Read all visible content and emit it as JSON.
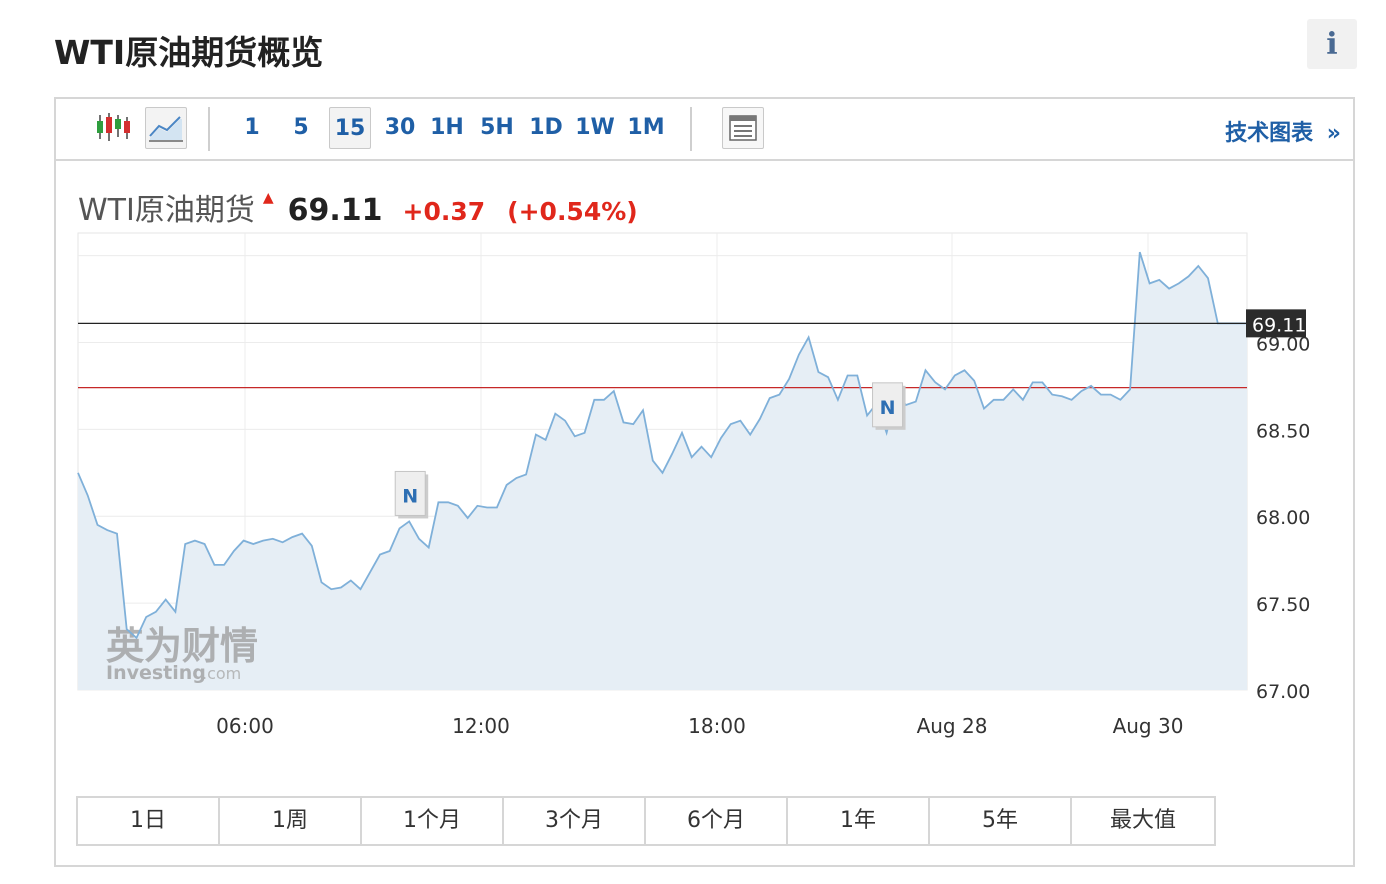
{
  "page": {
    "title": "WTI原油期货概览",
    "info_label": "i"
  },
  "toolbar": {
    "chart_types": [
      {
        "name": "candlestick-icon",
        "selected": false
      },
      {
        "name": "line-chart-icon",
        "selected": true
      }
    ],
    "intervals": [
      "1",
      "5",
      "15",
      "30",
      "1H",
      "5H",
      "1D",
      "1W",
      "1M"
    ],
    "selected_interval": "15",
    "settings_icon": "table-icon",
    "tech_chart_label": "技术图表",
    "tech_chart_arrow": "»"
  },
  "quote": {
    "name": "WTI原油期货",
    "direction": "up",
    "price": "69.11",
    "change": "+0.37",
    "change_pct": "(+0.54%)"
  },
  "chart_data": {
    "type": "area",
    "title": "",
    "xlabel": "",
    "ylabel": "",
    "x_tick_labels": [
      "06:00",
      "12:00",
      "18:00",
      "Aug 28",
      "Aug 30"
    ],
    "y_tick_labels": [
      "69.00",
      "68.50",
      "68.00",
      "67.50",
      "67.00"
    ],
    "ylim": [
      67.0,
      69.63
    ],
    "grid": true,
    "last_price_label": "69.11",
    "last_price": 69.11,
    "reference_line_value": 68.74,
    "news_marker_label": "N",
    "news_markers_at_index": [
      34,
      83
    ],
    "series_values": [
      68.25,
      68.12,
      67.95,
      67.92,
      67.9,
      67.35,
      67.3,
      67.42,
      67.45,
      67.52,
      67.45,
      67.84,
      67.86,
      67.84,
      67.72,
      67.72,
      67.8,
      67.86,
      67.84,
      67.86,
      67.87,
      67.85,
      67.88,
      67.9,
      67.83,
      67.62,
      67.58,
      67.59,
      67.63,
      67.58,
      67.68,
      67.78,
      67.8,
      67.93,
      67.97,
      67.87,
      67.82,
      68.08,
      68.08,
      68.06,
      67.99,
      68.06,
      68.05,
      68.05,
      68.18,
      68.22,
      68.24,
      68.47,
      68.44,
      68.59,
      68.55,
      68.46,
      68.48,
      68.67,
      68.67,
      68.72,
      68.54,
      68.53,
      68.61,
      68.32,
      68.25,
      68.36,
      68.48,
      68.34,
      68.4,
      68.34,
      68.45,
      68.53,
      68.55,
      68.47,
      68.56,
      68.68,
      68.7,
      68.79,
      68.93,
      69.03,
      68.83,
      68.8,
      68.67,
      68.81,
      68.81,
      68.58,
      68.65,
      68.48,
      68.7,
      68.64,
      68.66,
      68.84,
      68.77,
      68.73,
      68.81,
      68.84,
      68.78,
      68.62,
      68.67,
      68.67,
      68.73,
      68.67,
      68.77,
      68.77,
      68.7,
      68.69,
      68.67,
      68.72,
      68.75,
      68.7,
      68.7,
      68.67,
      68.73,
      69.52,
      69.34,
      69.36,
      69.31,
      69.34,
      69.38,
      69.44,
      69.37,
      69.11,
      69.11,
      69.11,
      69.11
    ]
  },
  "watermark": {
    "cn": "英为财情",
    "en": "Investing",
    "en_suffix": ".com"
  },
  "ranges": [
    "1日",
    "1周",
    "1个月",
    "3个月",
    "6个月",
    "1年",
    "5年",
    "最大值"
  ],
  "colors": {
    "accent": "#1f5fa6",
    "up": "#e0271b",
    "line": "#7fb0d9",
    "area": "#e6eef5",
    "reference": "#c62828"
  }
}
